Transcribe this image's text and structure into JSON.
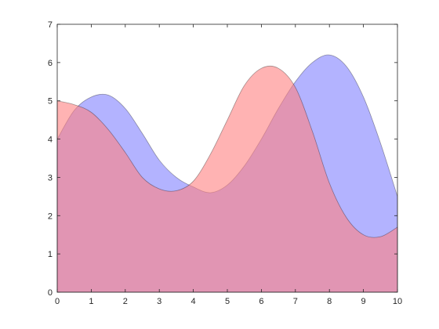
{
  "chart_data": {
    "type": "area",
    "title": "",
    "xlabel": "",
    "ylabel": "",
    "xlim": [
      0,
      10
    ],
    "ylim": [
      0,
      7
    ],
    "xticks": [
      0,
      1,
      2,
      3,
      4,
      5,
      6,
      7,
      8,
      9,
      10
    ],
    "yticks": [
      0,
      1,
      2,
      3,
      4,
      5,
      6,
      7
    ],
    "grid": false,
    "legend": "none",
    "x": [
      0,
      0.5,
      1,
      1.5,
      2,
      2.5,
      3,
      3.5,
      4,
      4.5,
      5,
      5.5,
      6,
      6.5,
      7,
      7.5,
      8,
      8.5,
      9,
      9.5,
      10
    ],
    "series": [
      {
        "color": "#8080ff",
        "opacity": 0.6,
        "values": [
          4.0,
          4.75,
          5.1,
          5.15,
          4.8,
          4.15,
          3.45,
          3.0,
          2.75,
          2.6,
          2.8,
          3.3,
          4.0,
          4.8,
          5.5,
          6.0,
          6.2,
          5.9,
          5.1,
          3.9,
          2.5
        ]
      },
      {
        "color": "#ff8080",
        "opacity": 0.6,
        "values": [
          5.0,
          4.9,
          4.7,
          4.25,
          3.65,
          3.0,
          2.7,
          2.65,
          2.9,
          3.6,
          4.5,
          5.4,
          5.85,
          5.85,
          5.35,
          4.2,
          2.85,
          1.95,
          1.5,
          1.45,
          1.7
        ]
      }
    ]
  }
}
